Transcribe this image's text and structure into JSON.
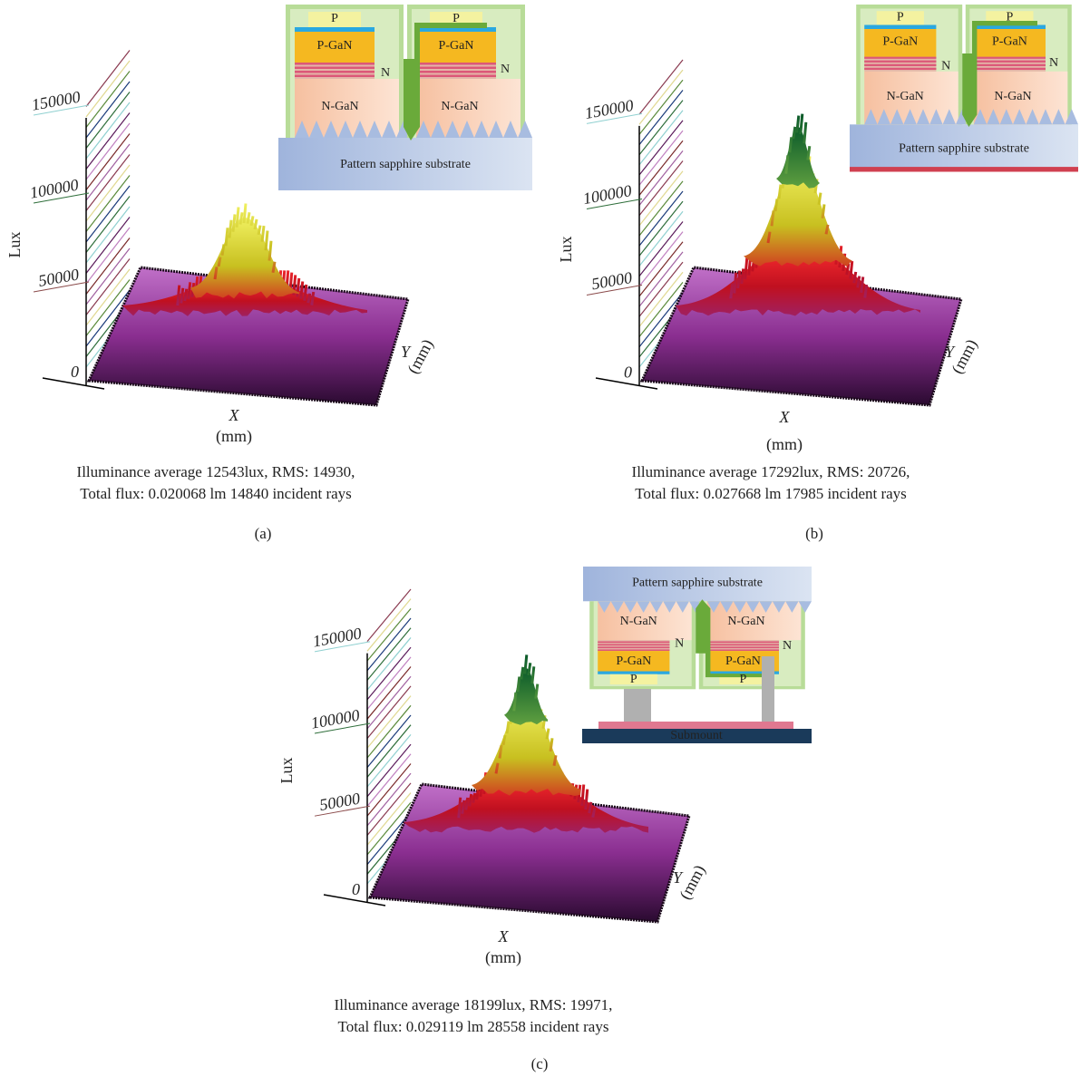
{
  "panels": [
    {
      "label": "(a)",
      "y_axis_label": "Lux",
      "y_ticks": [
        "150000",
        "100000",
        "50000",
        "0"
      ],
      "x_axis_label": "X",
      "x_axis_unit": "(mm)",
      "depth_axis_label": "Y",
      "depth_axis_unit": "(mm)",
      "caption": [
        "Illuminance average 12543lux, RMS: 14930,",
        "Total flux: 0.020068 lm 14840 incident rays"
      ],
      "inset": {
        "substrate": "Pattern sapphire substrate",
        "p_contacts": [
          "P",
          "P"
        ],
        "p_gan": [
          "P-GaN",
          "P-GaN"
        ],
        "n_contacts": [
          "N",
          "N"
        ],
        "n_gan": [
          "N-GaN",
          "N-GaN"
        ]
      }
    },
    {
      "label": "(b)",
      "y_axis_label": "Lux",
      "y_ticks": [
        "150000",
        "100000",
        "50000",
        "0"
      ],
      "x_axis_label": "X",
      "x_axis_unit": "(mm)",
      "depth_axis_label": "Y",
      "depth_axis_unit": "(mm)",
      "caption": [
        "Illuminance average 17292lux, RMS: 20726,",
        "Total flux:  0.027668 lm 17985 incident rays"
      ],
      "inset": {
        "substrate": "Pattern sapphire substrate",
        "p_contacts": [
          "P",
          "P"
        ],
        "p_gan": [
          "P-GaN",
          "P-GaN"
        ],
        "n_contacts": [
          "N",
          "N"
        ],
        "n_gan": [
          "N-GaN",
          "N-GaN"
        ]
      }
    },
    {
      "label": "(c)",
      "y_axis_label": "Lux",
      "y_ticks": [
        "150000",
        "100000",
        "50000",
        "0"
      ],
      "x_axis_label": "X",
      "x_axis_unit": "(mm)",
      "depth_axis_label": "Y",
      "depth_axis_unit": "(mm)",
      "caption": [
        "Illuminance average 18199lux, RMS: 19971,",
        "Total flux: 0.029119 lm 28558 incident rays"
      ],
      "inset": {
        "substrate": "Pattern sapphire substrate",
        "p_contacts": [
          "P",
          "P"
        ],
        "p_gan": [
          "P-GaN",
          "P-GaN"
        ],
        "n_contacts": [
          "N",
          "N"
        ],
        "n_gan": [
          "N-GaN",
          "N-GaN"
        ],
        "submount": "Submount"
      }
    }
  ]
}
